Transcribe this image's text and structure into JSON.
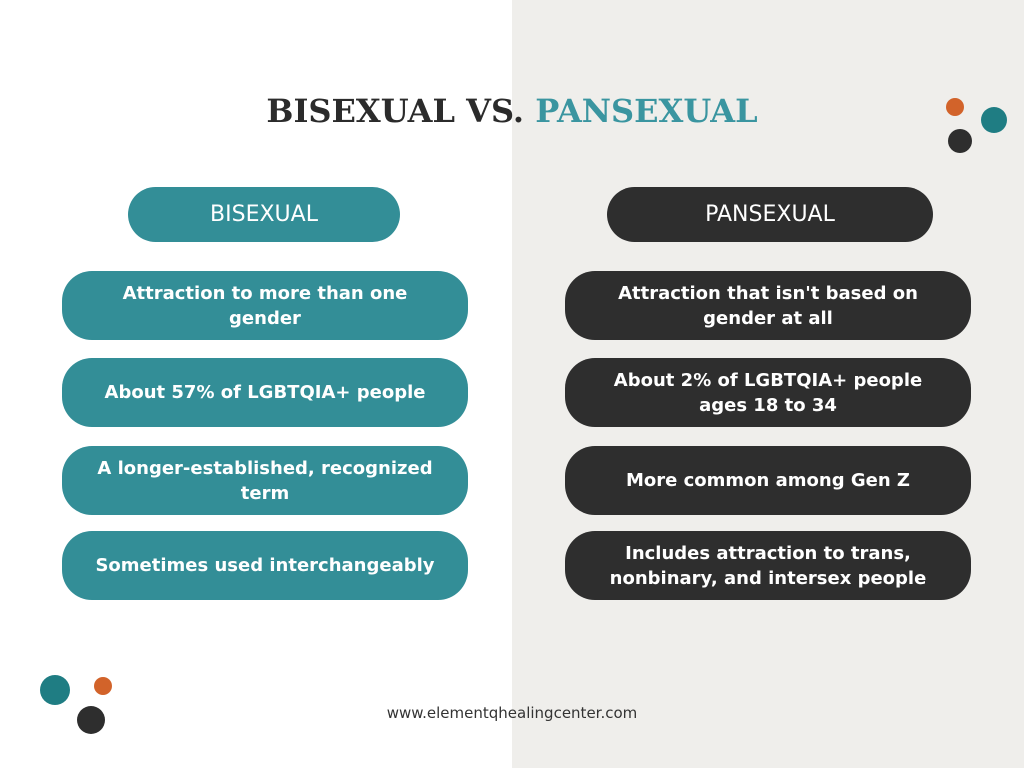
{
  "title": {
    "part1": "BISEXUAL VS.",
    "part2": "PANSEXUAL"
  },
  "left": {
    "heading": "BISEXUAL",
    "items": [
      "Attraction to more than one gender",
      "About 57% of LGBTQIA+ people",
      "A longer-established, recognized term",
      "Sometimes used interchangeably"
    ]
  },
  "right": {
    "heading": "PANSEXUAL",
    "items": [
      "Attraction that isn't based on gender at all",
      "About 2% of LGBTQIA+ people ages 18 to 34",
      "More common among Gen Z",
      "Includes attraction to trans, nonbinary, and intersex people"
    ]
  },
  "footer": "www.elementqhealingcenter.com"
}
